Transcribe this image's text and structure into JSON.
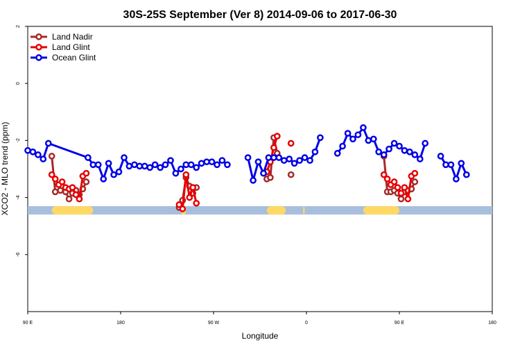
{
  "chart_data": {
    "type": "line",
    "title": "30S-25S September (Ver 8)   2014-09-06 to 2017-06-30",
    "xlabel": "Longitude",
    "ylabel": "XCO2 - MLO trend (ppm)",
    "xlim": [
      -90,
      180
    ],
    "ylim": [
      -8,
      2
    ],
    "x_ticks": [
      {
        "value": -90,
        "label": "90 E"
      },
      {
        "value": -36,
        "label": "180"
      },
      {
        "value": 18,
        "label": "90 W"
      },
      {
        "value": 72,
        "label": "0"
      },
      {
        "value": 126,
        "label": "90 E"
      },
      {
        "value": 180,
        "label": "180"
      }
    ],
    "y_ticks": [
      {
        "value": 2,
        "label": "2"
      },
      {
        "value": 0,
        "label": "0"
      },
      {
        "value": -2,
        "label": "-2"
      },
      {
        "value": -4,
        "label": "-4"
      },
      {
        "value": -6,
        "label": "-6"
      }
    ],
    "grid": false,
    "legend_position": "top-left",
    "land_band": {
      "y": -4.45,
      "color": "#a8bedd",
      "land_color": "#ffd966",
      "land_segments": [
        [
          -76,
          -52
        ],
        [
          -1,
          2
        ],
        [
          49,
          60
        ],
        [
          70,
          71
        ],
        [
          105,
          126
        ]
      ]
    },
    "series": [
      {
        "name": "Land Nadir",
        "color": "#a52a2a",
        "segments": [
          [
            [
              -76,
              -2.55
            ],
            [
              -74,
              -3.8
            ],
            [
              -71,
              -3.75
            ],
            [
              -68,
              -3.8
            ],
            [
              -66,
              -4.05
            ],
            [
              -64,
              -3.85
            ],
            [
              -62,
              -3.75
            ],
            [
              -60,
              -3.9
            ],
            [
              -58,
              -3.7
            ],
            [
              -56,
              -3.45
            ]
          ],
          [
            [
              -2,
              -4.35
            ],
            [
              0,
              -4.1
            ],
            [
              2,
              -3.3
            ],
            [
              4,
              -3.6
            ],
            [
              6,
              -3.85
            ],
            [
              8,
              -3.65
            ]
          ],
          [
            [
              49,
              -3.35
            ],
            [
              51,
              -3.3
            ],
            [
              53,
              -1.9
            ],
            [
              55,
              -2.45
            ]
          ],
          [
            [
              63,
              -3.2
            ]
          ],
          [
            [
              117,
              -2.55
            ],
            [
              119,
              -3.8
            ],
            [
              121,
              -3.8
            ],
            [
              123,
              -3.75
            ],
            [
              125,
              -3.85
            ],
            [
              127,
              -4.05
            ],
            [
              129,
              -3.8
            ],
            [
              131,
              -3.75
            ],
            [
              133,
              -3.7
            ],
            [
              135,
              -3.45
            ]
          ]
        ]
      },
      {
        "name": "Land Glint",
        "color": "#e60000",
        "segments": [
          [
            [
              -76,
              -3.2
            ],
            [
              -74,
              -3.35
            ],
            [
              -72,
              -3.55
            ],
            [
              -70,
              -3.45
            ],
            [
              -68,
              -3.65
            ],
            [
              -66,
              -3.7
            ],
            [
              -64,
              -3.65
            ],
            [
              -62,
              -3.9
            ],
            [
              -60,
              -4.05
            ],
            [
              -58,
              -3.25
            ],
            [
              -56,
              -3.15
            ]
          ],
          [
            [
              -2,
              -4.25
            ],
            [
              0,
              -4.4
            ],
            [
              2,
              -3.2
            ],
            [
              4,
              -4.0
            ],
            [
              6,
              -3.65
            ],
            [
              8,
              -4.2
            ]
          ],
          [
            [
              49,
              -3.1
            ],
            [
              51,
              -2.75
            ],
            [
              53,
              -2.25
            ],
            [
              55,
              -1.85
            ]
          ],
          [
            [
              63,
              -2.1
            ]
          ],
          [
            [
              117,
              -3.2
            ],
            [
              119,
              -3.35
            ],
            [
              121,
              -3.55
            ],
            [
              123,
              -3.45
            ],
            [
              125,
              -3.65
            ],
            [
              127,
              -3.85
            ],
            [
              129,
              -3.65
            ],
            [
              131,
              -4.05
            ],
            [
              133,
              -3.25
            ],
            [
              135,
              -3.15
            ]
          ]
        ]
      },
      {
        "name": "Ocean Glint",
        "color": "#0000e6",
        "segments": [
          [
            [
              -90,
              -2.35
            ],
            [
              -87,
              -2.4
            ],
            [
              -84,
              -2.5
            ],
            [
              -81,
              -2.65
            ],
            [
              -78,
              -2.1
            ],
            [
              -55,
              -2.6
            ],
            [
              -52,
              -2.85
            ],
            [
              -49,
              -2.85
            ],
            [
              -46,
              -3.35
            ],
            [
              -43,
              -2.8
            ],
            [
              -40,
              -3.2
            ],
            [
              -37,
              -3.1
            ],
            [
              -34,
              -2.6
            ],
            [
              -31,
              -2.9
            ],
            [
              -28,
              -2.85
            ],
            [
              -25,
              -2.9
            ],
            [
              -22,
              -2.9
            ],
            [
              -19,
              -2.95
            ],
            [
              -16,
              -2.85
            ],
            [
              -13,
              -2.95
            ],
            [
              -10,
              -2.85
            ],
            [
              -7,
              -2.7
            ],
            [
              -4,
              -3.15
            ],
            [
              -1,
              -3.0
            ],
            [
              2,
              -2.85
            ],
            [
              5,
              -2.85
            ],
            [
              8,
              -2.95
            ],
            [
              11,
              -2.8
            ],
            [
              14,
              -2.75
            ],
            [
              17,
              -2.75
            ],
            [
              20,
              -2.85
            ],
            [
              23,
              -2.7
            ],
            [
              26,
              -2.85
            ]
          ],
          [
            [
              38,
              -2.6
            ],
            [
              41,
              -3.4
            ],
            [
              44,
              -2.75
            ],
            [
              47,
              -3.15
            ],
            [
              50,
              -2.6
            ],
            [
              53,
              -2.6
            ],
            [
              56,
              -2.6
            ],
            [
              59,
              -2.7
            ],
            [
              62,
              -2.65
            ],
            [
              65,
              -2.8
            ],
            [
              68,
              -2.7
            ],
            [
              71,
              -2.6
            ],
            [
              74,
              -2.7
            ],
            [
              77,
              -2.4
            ],
            [
              80,
              -1.9
            ]
          ],
          [
            [
              90,
              -2.45
            ],
            [
              93,
              -2.2
            ],
            [
              96,
              -1.75
            ],
            [
              99,
              -1.95
            ],
            [
              102,
              -1.8
            ],
            [
              105,
              -1.55
            ],
            [
              108,
              -2.0
            ],
            [
              111,
              -1.95
            ],
            [
              114,
              -2.4
            ],
            [
              117,
              -2.5
            ],
            [
              120,
              -2.3
            ],
            [
              123,
              -2.1
            ],
            [
              126,
              -2.2
            ],
            [
              129,
              -2.35
            ],
            [
              132,
              -2.4
            ],
            [
              135,
              -2.5
            ],
            [
              138,
              -2.65
            ],
            [
              141,
              -2.1
            ]
          ],
          [
            [
              150,
              -2.55
            ],
            [
              153,
              -2.85
            ],
            [
              156,
              -2.85
            ],
            [
              159,
              -3.35
            ],
            [
              162,
              -2.8
            ],
            [
              165,
              -3.2
            ]
          ]
        ]
      }
    ]
  }
}
